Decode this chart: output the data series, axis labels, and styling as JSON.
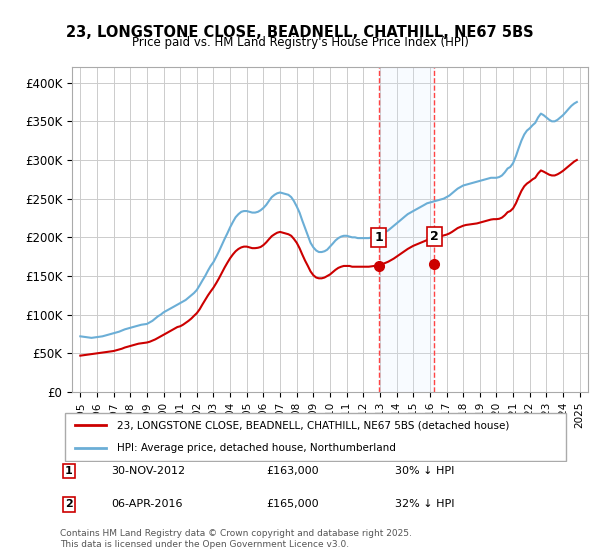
{
  "title": "23, LONGSTONE CLOSE, BEADNELL, CHATHILL, NE67 5BS",
  "subtitle": "Price paid vs. HM Land Registry's House Price Index (HPI)",
  "xlabel": "",
  "ylabel": "",
  "background_color": "#ffffff",
  "plot_bg_color": "#ffffff",
  "grid_color": "#cccccc",
  "hpi_color": "#6baed6",
  "price_color": "#cc0000",
  "marker_color": "#cc0000",
  "shade_color": "#ddeeff",
  "dashed_line_color": "#ff4444",
  "marker1_date": 2012.92,
  "marker2_date": 2016.27,
  "marker1_label": "1",
  "marker2_label": "2",
  "annotation1": "30-NOV-2012    £163,000    30% ↓ HPI",
  "annotation2": "06-APR-2016    £165,000    32% ↓ HPI",
  "legend_line1": "23, LONGSTONE CLOSE, BEADNELL, CHATHILL, NE67 5BS (detached house)",
  "legend_line2": "HPI: Average price, detached house, Northumberland",
  "footer": "Contains HM Land Registry data © Crown copyright and database right 2025.\nThis data is licensed under the Open Government Licence v3.0.",
  "ylim": [
    0,
    420000
  ],
  "yticks": [
    0,
    50000,
    100000,
    150000,
    200000,
    250000,
    300000,
    350000,
    400000
  ],
  "ytick_labels": [
    "£0",
    "£50K",
    "£100K",
    "£150K",
    "£200K",
    "£250K",
    "£300K",
    "£350K",
    "£400K"
  ],
  "hpi_data": {
    "years": [
      1995.0,
      1995.17,
      1995.33,
      1995.5,
      1995.67,
      1995.83,
      1996.0,
      1996.17,
      1996.33,
      1996.5,
      1996.67,
      1996.83,
      1997.0,
      1997.17,
      1997.33,
      1997.5,
      1997.67,
      1997.83,
      1998.0,
      1998.17,
      1998.33,
      1998.5,
      1998.67,
      1998.83,
      1999.0,
      1999.17,
      1999.33,
      1999.5,
      1999.67,
      1999.83,
      2000.0,
      2000.17,
      2000.33,
      2000.5,
      2000.67,
      2000.83,
      2001.0,
      2001.17,
      2001.33,
      2001.5,
      2001.67,
      2001.83,
      2002.0,
      2002.17,
      2002.33,
      2002.5,
      2002.67,
      2002.83,
      2003.0,
      2003.17,
      2003.33,
      2003.5,
      2003.67,
      2003.83,
      2004.0,
      2004.17,
      2004.33,
      2004.5,
      2004.67,
      2004.83,
      2005.0,
      2005.17,
      2005.33,
      2005.5,
      2005.67,
      2005.83,
      2006.0,
      2006.17,
      2006.33,
      2006.5,
      2006.67,
      2006.83,
      2007.0,
      2007.17,
      2007.33,
      2007.5,
      2007.67,
      2007.83,
      2008.0,
      2008.17,
      2008.33,
      2008.5,
      2008.67,
      2008.83,
      2009.0,
      2009.17,
      2009.33,
      2009.5,
      2009.67,
      2009.83,
      2010.0,
      2010.17,
      2010.33,
      2010.5,
      2010.67,
      2010.83,
      2011.0,
      2011.17,
      2011.33,
      2011.5,
      2011.67,
      2011.83,
      2012.0,
      2012.17,
      2012.33,
      2012.5,
      2012.67,
      2012.83,
      2013.0,
      2013.17,
      2013.33,
      2013.5,
      2013.67,
      2013.83,
      2014.0,
      2014.17,
      2014.33,
      2014.5,
      2014.67,
      2014.83,
      2015.0,
      2015.17,
      2015.33,
      2015.5,
      2015.67,
      2015.83,
      2016.0,
      2016.17,
      2016.33,
      2016.5,
      2016.67,
      2016.83,
      2017.0,
      2017.17,
      2017.33,
      2017.5,
      2017.67,
      2017.83,
      2018.0,
      2018.17,
      2018.33,
      2018.5,
      2018.67,
      2018.83,
      2019.0,
      2019.17,
      2019.33,
      2019.5,
      2019.67,
      2019.83,
      2020.0,
      2020.17,
      2020.33,
      2020.5,
      2020.67,
      2020.83,
      2021.0,
      2021.17,
      2021.33,
      2021.5,
      2021.67,
      2021.83,
      2022.0,
      2022.17,
      2022.33,
      2022.5,
      2022.67,
      2022.83,
      2023.0,
      2023.17,
      2023.33,
      2023.5,
      2023.67,
      2023.83,
      2024.0,
      2024.17,
      2024.33,
      2024.5,
      2024.67,
      2024.83
    ],
    "values": [
      72000,
      71500,
      71000,
      70500,
      70000,
      70500,
      71000,
      71500,
      72000,
      73000,
      74000,
      75000,
      76000,
      77000,
      78000,
      79500,
      81000,
      82000,
      83000,
      84000,
      85000,
      86000,
      87000,
      87500,
      88000,
      90000,
      92000,
      95000,
      98000,
      100000,
      103000,
      105000,
      107000,
      109000,
      111000,
      113000,
      115000,
      117000,
      119000,
      122000,
      125000,
      128000,
      132000,
      138000,
      144000,
      150000,
      157000,
      163000,
      168000,
      175000,
      182000,
      190000,
      198000,
      205000,
      213000,
      220000,
      226000,
      230000,
      233000,
      234000,
      234000,
      233000,
      232000,
      232000,
      233000,
      235000,
      238000,
      242000,
      247000,
      252000,
      255000,
      257000,
      258000,
      257000,
      256000,
      255000,
      252000,
      247000,
      240000,
      232000,
      222000,
      212000,
      202000,
      193000,
      187000,
      183000,
      181000,
      181000,
      182000,
      184000,
      188000,
      192000,
      196000,
      199000,
      201000,
      202000,
      202000,
      201000,
      200000,
      200000,
      199000,
      199000,
      199000,
      199000,
      199000,
      200000,
      201000,
      202000,
      203000,
      205000,
      207000,
      209000,
      212000,
      215000,
      218000,
      221000,
      224000,
      227000,
      230000,
      232000,
      234000,
      236000,
      238000,
      240000,
      242000,
      244000,
      245000,
      246000,
      247000,
      248000,
      249000,
      250000,
      252000,
      254000,
      257000,
      260000,
      263000,
      265000,
      267000,
      268000,
      269000,
      270000,
      271000,
      272000,
      273000,
      274000,
      275000,
      276000,
      277000,
      277000,
      277000,
      278000,
      280000,
      284000,
      289000,
      291000,
      296000,
      305000,
      315000,
      325000,
      333000,
      338000,
      341000,
      345000,
      348000,
      355000,
      360000,
      358000,
      355000,
      352000,
      350000,
      350000,
      352000,
      355000,
      358000,
      362000,
      366000,
      370000,
      373000,
      375000
    ]
  },
  "price_data": {
    "years": [
      1995.0,
      1995.17,
      1995.33,
      1995.5,
      1995.67,
      1995.83,
      1996.0,
      1996.17,
      1996.33,
      1996.5,
      1996.67,
      1996.83,
      1997.0,
      1997.17,
      1997.33,
      1997.5,
      1997.67,
      1997.83,
      1998.0,
      1998.17,
      1998.33,
      1998.5,
      1998.67,
      1998.83,
      1999.0,
      1999.17,
      1999.33,
      1999.5,
      1999.67,
      1999.83,
      2000.0,
      2000.17,
      2000.33,
      2000.5,
      2000.67,
      2000.83,
      2001.0,
      2001.17,
      2001.33,
      2001.5,
      2001.67,
      2001.83,
      2002.0,
      2002.17,
      2002.33,
      2002.5,
      2002.67,
      2002.83,
      2003.0,
      2003.17,
      2003.33,
      2003.5,
      2003.67,
      2003.83,
      2004.0,
      2004.17,
      2004.33,
      2004.5,
      2004.67,
      2004.83,
      2005.0,
      2005.17,
      2005.33,
      2005.5,
      2005.67,
      2005.83,
      2006.0,
      2006.17,
      2006.33,
      2006.5,
      2006.67,
      2006.83,
      2007.0,
      2007.17,
      2007.33,
      2007.5,
      2007.67,
      2007.83,
      2008.0,
      2008.17,
      2008.33,
      2008.5,
      2008.67,
      2008.83,
      2009.0,
      2009.17,
      2009.33,
      2009.5,
      2009.67,
      2009.83,
      2010.0,
      2010.17,
      2010.33,
      2010.5,
      2010.67,
      2010.83,
      2011.0,
      2011.17,
      2011.33,
      2011.5,
      2011.67,
      2011.83,
      2012.0,
      2012.17,
      2012.33,
      2012.5,
      2012.67,
      2012.83,
      2013.0,
      2013.17,
      2013.33,
      2013.5,
      2013.67,
      2013.83,
      2014.0,
      2014.17,
      2014.33,
      2014.5,
      2014.67,
      2014.83,
      2015.0,
      2015.17,
      2015.33,
      2015.5,
      2015.67,
      2015.83,
      2016.0,
      2016.17,
      2016.33,
      2016.5,
      2016.67,
      2016.83,
      2017.0,
      2017.17,
      2017.33,
      2017.5,
      2017.67,
      2017.83,
      2018.0,
      2018.17,
      2018.33,
      2018.5,
      2018.67,
      2018.83,
      2019.0,
      2019.17,
      2019.33,
      2019.5,
      2019.67,
      2019.83,
      2020.0,
      2020.17,
      2020.33,
      2020.5,
      2020.67,
      2020.83,
      2021.0,
      2021.17,
      2021.33,
      2021.5,
      2021.67,
      2021.83,
      2022.0,
      2022.17,
      2022.33,
      2022.5,
      2022.67,
      2022.83,
      2023.0,
      2023.17,
      2023.33,
      2023.5,
      2023.67,
      2023.83,
      2024.0,
      2024.17,
      2024.33,
      2024.5,
      2024.67,
      2024.83
    ],
    "values": [
      47000,
      47500,
      48000,
      48500,
      49000,
      49500,
      50000,
      50500,
      51000,
      51500,
      52000,
      52500,
      53000,
      54000,
      55000,
      56000,
      57500,
      58500,
      59500,
      60500,
      61500,
      62500,
      63000,
      63500,
      64000,
      65000,
      66500,
      68000,
      70000,
      72000,
      74000,
      76000,
      78000,
      80000,
      82000,
      84000,
      85000,
      87000,
      89500,
      92000,
      95000,
      98500,
      102000,
      107000,
      113000,
      119000,
      125000,
      130000,
      135000,
      141000,
      147000,
      154000,
      161000,
      167000,
      173000,
      178000,
      182000,
      185000,
      187000,
      188000,
      188000,
      187000,
      186000,
      186000,
      186500,
      187500,
      190000,
      193500,
      197500,
      201500,
      204000,
      206000,
      207000,
      206000,
      205000,
      204000,
      202000,
      198000,
      193000,
      186000,
      178000,
      170000,
      163000,
      156000,
      151000,
      148000,
      147000,
      147000,
      148000,
      150000,
      152000,
      155000,
      158000,
      160500,
      162000,
      163000,
      163000,
      163000,
      162000,
      162000,
      162000,
      162000,
      162000,
      162000,
      162000,
      162500,
      163000,
      163500,
      164000,
      165500,
      167000,
      168500,
      170500,
      172500,
      175000,
      177500,
      180000,
      182500,
      185000,
      187000,
      189000,
      190500,
      192000,
      193500,
      195000,
      196500,
      197500,
      198500,
      199500,
      200500,
      201500,
      202500,
      203500,
      205000,
      207000,
      209500,
      212000,
      213500,
      215000,
      216000,
      216500,
      217000,
      217500,
      218000,
      219000,
      220000,
      221000,
      222000,
      223000,
      223500,
      223500,
      224000,
      225500,
      228500,
      232500,
      234000,
      237500,
      244000,
      252000,
      260000,
      266000,
      269500,
      272000,
      275000,
      277000,
      282500,
      286500,
      285000,
      283000,
      281000,
      280000,
      280000,
      281500,
      283500,
      286000,
      289000,
      292000,
      295000,
      298000,
      300000
    ]
  }
}
